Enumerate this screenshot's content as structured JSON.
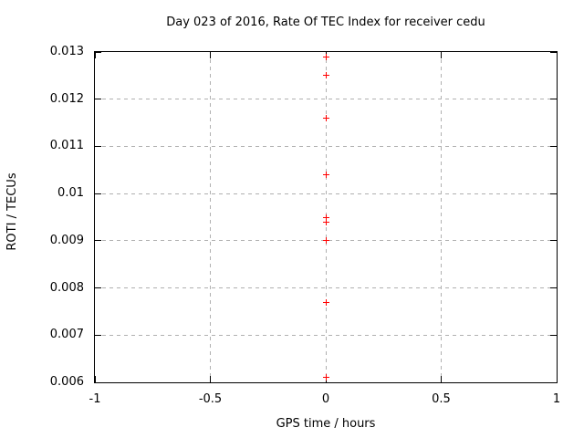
{
  "chart_data": {
    "type": "scatter",
    "title": "Day 023 of 2016, Rate Of TEC Index for receiver cedu",
    "xlabel": "GPS time / hours",
    "ylabel": "ROTI / TECUs",
    "xlim": [
      -1,
      1
    ],
    "ylim": [
      0.006,
      0.013
    ],
    "grid": true,
    "legend": "none",
    "x_ticks": [
      {
        "v": -1,
        "label": "-1"
      },
      {
        "v": -0.5,
        "label": "-0.5"
      },
      {
        "v": 0,
        "label": "0"
      },
      {
        "v": 0.5,
        "label": "0.5"
      },
      {
        "v": 1,
        "label": "1"
      }
    ],
    "y_ticks": [
      {
        "v": 0.006,
        "label": "0.006"
      },
      {
        "v": 0.007,
        "label": "0.007"
      },
      {
        "v": 0.008,
        "label": "0.008"
      },
      {
        "v": 0.009,
        "label": "0.009"
      },
      {
        "v": 0.01,
        "label": "0.01"
      },
      {
        "v": 0.011,
        "label": "0.011"
      },
      {
        "v": 0.012,
        "label": "0.012"
      },
      {
        "v": 0.013,
        "label": "0.013"
      }
    ],
    "series": [
      {
        "name": "ROTI",
        "marker": "plus",
        "color": "#ff0000",
        "x": [
          0,
          0,
          0,
          0,
          0,
          0,
          0,
          0,
          0
        ],
        "y": [
          0.0129,
          0.0125,
          0.0116,
          0.0104,
          0.0095,
          0.0094,
          0.009,
          0.0077,
          0.0061
        ]
      }
    ]
  },
  "colors": {
    "marker": "#ff0000",
    "grid": "#b0b0b0",
    "axis": "#000000",
    "text": "#000000",
    "background": "#ffffff"
  }
}
